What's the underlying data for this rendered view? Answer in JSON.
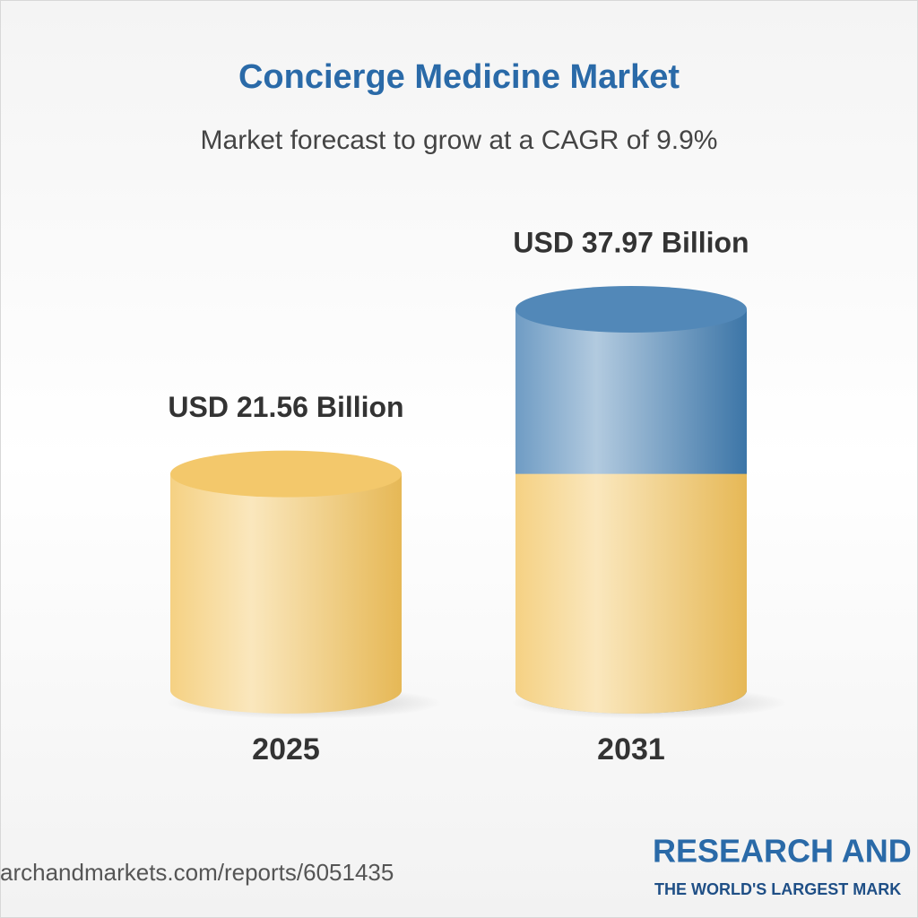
{
  "chart_data": {
    "type": "cylinder",
    "title": "Concierge Medicine Market",
    "subtitle": "Market forecast to grow at a CAGR of 9.9%",
    "categories": [
      "2025",
      "2031"
    ],
    "values": [
      21.56,
      37.97
    ],
    "value_labels": [
      "USD 21.56 Billion",
      "USD 37.97 Billion"
    ],
    "colors": [
      "#f2c25a",
      "#3f7bb0"
    ],
    "source": "archandmarkets.com/reports/6051435",
    "brand": "RESEARCH AND",
    "tagline": "THE WORLD'S LARGEST MARK"
  }
}
